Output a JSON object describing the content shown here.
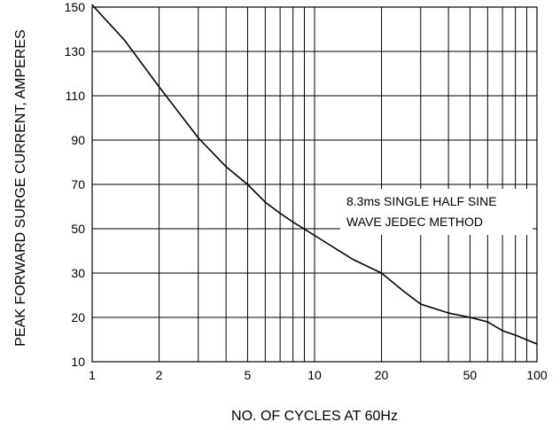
{
  "chart_data": {
    "type": "line",
    "title": "",
    "xlabel": "NO. OF CYCLES AT 60Hz",
    "ylabel": "PEAK FORWARD SURGE CURRENT, AMPERES",
    "x_scale": "log",
    "xlim": [
      1,
      100
    ],
    "ylim": [
      10,
      150
    ],
    "x_ticks": [
      1,
      2,
      5,
      10,
      20,
      50,
      100
    ],
    "x_tick_labels": [
      "1",
      "2",
      "5",
      "10",
      "20",
      "50",
      "100"
    ],
    "x_gridlines": [
      1,
      2,
      3,
      4,
      5,
      6,
      7,
      8,
      9,
      10,
      20,
      30,
      40,
      50,
      60,
      70,
      80,
      90,
      100
    ],
    "y_ticks": [
      10,
      20,
      30,
      50,
      70,
      90,
      110,
      130,
      150
    ],
    "y_tick_labels": [
      "10",
      "20",
      "30",
      "50",
      "70",
      "90",
      "110",
      "130",
      "150"
    ],
    "y_gridlines": [
      10,
      20,
      30,
      50,
      70,
      90,
      110,
      130,
      150
    ],
    "grid": true,
    "annotation": [
      "8.3ms SINGLE HALF SINE",
      "WAVE JEDEC METHOD"
    ],
    "series": [
      {
        "x": [
          1,
          1.4,
          2,
          3,
          4,
          5,
          6,
          7,
          8,
          10,
          12,
          15,
          20,
          25,
          30,
          40,
          50,
          60,
          70,
          80,
          100
        ],
        "y": [
          151,
          135,
          114,
          91,
          78,
          70,
          62,
          57,
          53,
          47,
          42,
          36,
          30,
          26,
          23,
          21,
          20,
          19,
          17,
          16,
          14
        ]
      }
    ]
  }
}
